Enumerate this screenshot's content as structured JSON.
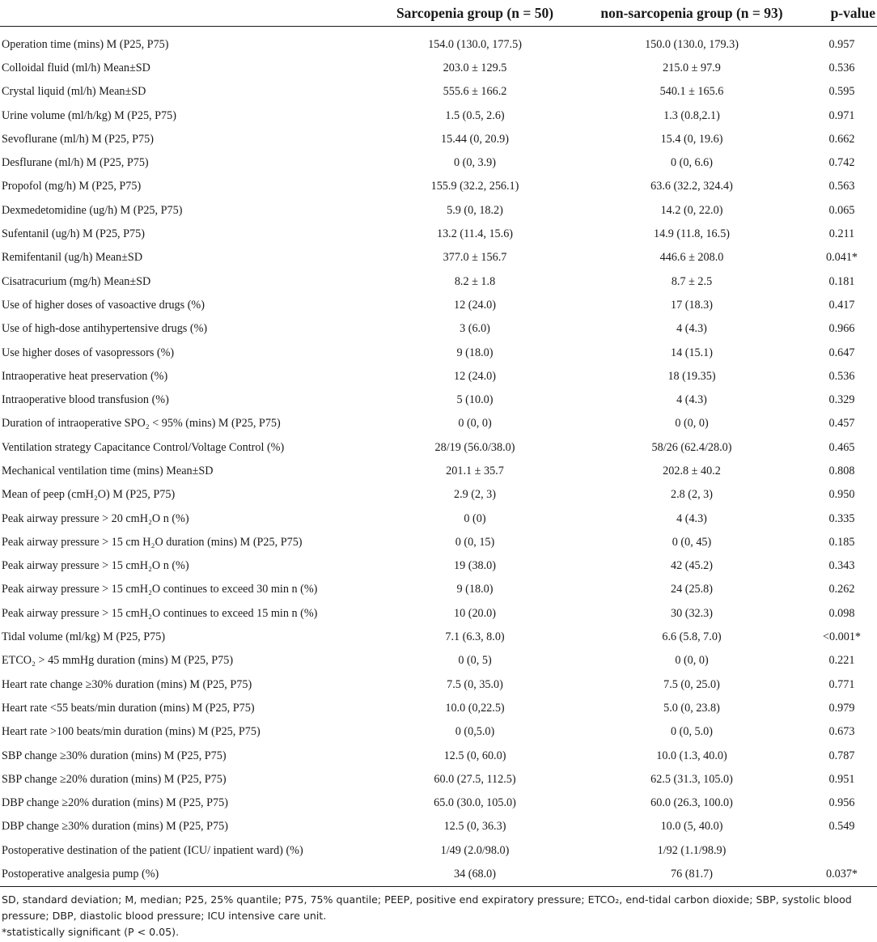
{
  "table": {
    "headers": {
      "label": "",
      "group1": "Sarcopenia group (n = 50)",
      "group2": "non-sarcopenia group (n = 93)",
      "pvalue": "p-value"
    },
    "rows": [
      {
        "label": "Operation time (mins) M (P25, P75)",
        "g1": "154.0 (130.0, 177.5)",
        "g2": "150.0 (130.0, 179.3)",
        "p": "0.957"
      },
      {
        "label": "Colloidal fluid (ml/h) Mean±SD",
        "g1": "203.0 ± 129.5",
        "g2": "215.0 ± 97.9",
        "p": "0.536"
      },
      {
        "label": "Crystal liquid (ml/h) Mean±SD",
        "g1": "555.6 ± 166.2",
        "g2": "540.1 ± 165.6",
        "p": "0.595"
      },
      {
        "label": "Urine volume (ml/h/kg) M (P25, P75)",
        "g1": "1.5 (0.5, 2.6)",
        "g2": "1.3 (0.8,2.1)",
        "p": "0.971"
      },
      {
        "label": "Sevoflurane (ml/h) M (P25, P75)",
        "g1": "15.44 (0, 20.9)",
        "g2": "15.4 (0, 19.6)",
        "p": "0.662"
      },
      {
        "label": "Desflurane (ml/h) M (P25, P75)",
        "g1": "0 (0, 3.9)",
        "g2": "0 (0, 6.6)",
        "p": "0.742"
      },
      {
        "label": "Propofol (mg/h) M (P25, P75)",
        "g1": "155.9 (32.2, 256.1)",
        "g2": "63.6 (32.2, 324.4)",
        "p": "0.563"
      },
      {
        "label": "Dexmedetomidine (ug/h) M (P25, P75)",
        "g1": "5.9 (0, 18.2)",
        "g2": "14.2 (0, 22.0)",
        "p": "0.065"
      },
      {
        "label": "Sufentanil (ug/h) M (P25, P75)",
        "g1": "13.2 (11.4, 15.6)",
        "g2": "14.9 (11.8, 16.5)",
        "p": "0.211"
      },
      {
        "label": "Remifentanil (ug/h) Mean±SD",
        "g1": "377.0 ± 156.7",
        "g2": "446.6 ± 208.0",
        "p": "0.041*"
      },
      {
        "label": "Cisatracurium (mg/h) Mean±SD",
        "g1": "8.2 ± 1.8",
        "g2": "8.7 ± 2.5",
        "p": "0.181"
      },
      {
        "label": "Use of higher doses of vasoactive drugs (%)",
        "g1": "12 (24.0)",
        "g2": "17 (18.3)",
        "p": "0.417"
      },
      {
        "label": "Use of high-dose antihypertensive drugs (%)",
        "g1": "3 (6.0)",
        "g2": "4 (4.3)",
        "p": "0.966"
      },
      {
        "label": "Use higher doses of vasopressors (%)",
        "g1": "9 (18.0)",
        "g2": "14 (15.1)",
        "p": "0.647"
      },
      {
        "label": "Intraoperative heat preservation (%)",
        "g1": "12 (24.0)",
        "g2": "18 (19.35)",
        "p": "0.536"
      },
      {
        "label": "Intraoperative blood transfusion (%)",
        "g1": "5 (10.0)",
        "g2": "4 (4.3)",
        "p": "0.329"
      },
      {
        "label": "Duration of intraoperative SPO₂ < 95% (mins) M (P25, P75)",
        "g1": "0 (0, 0)",
        "g2": "0 (0, 0)",
        "p": "0.457"
      },
      {
        "label": "Ventilation strategy Capacitance Control/Voltage Control (%)",
        "g1": "28/19 (56.0/38.0)",
        "g2": "58/26 (62.4/28.0)",
        "p": "0.465"
      },
      {
        "label": "Mechanical ventilation time (mins) Mean±SD",
        "g1": "201.1 ± 35.7",
        "g2": "202.8 ± 40.2",
        "p": "0.808"
      },
      {
        "label": "Mean of peep (cmH₂O) M (P25, P75)",
        "g1": "2.9 (2, 3)",
        "g2": "2.8 (2, 3)",
        "p": "0.950"
      },
      {
        "label": "Peak airway pressure > 20 cmH₂O n (%)",
        "g1": "0 (0)",
        "g2": "4 (4.3)",
        "p": "0.335"
      },
      {
        "label": "Peak airway pressure > 15 cm H₂O duration (mins) M (P25, P75)",
        "g1": "0 (0, 15)",
        "g2": "0 (0, 45)",
        "p": "0.185"
      },
      {
        "label": "Peak airway pressure > 15 cmH₂O n (%)",
        "g1": "19 (38.0)",
        "g2": "42 (45.2)",
        "p": "0.343"
      },
      {
        "label": "Peak airway pressure > 15 cmH₂O continues to exceed 30 min n (%)",
        "g1": "9 (18.0)",
        "g2": "24 (25.8)",
        "p": "0.262"
      },
      {
        "label": "Peak airway pressure > 15 cmH₂O continues to exceed 15 min n (%)",
        "g1": "10 (20.0)",
        "g2": "30 (32.3)",
        "p": "0.098"
      },
      {
        "label": "Tidal volume (ml/kg) M (P25, P75)",
        "g1": "7.1 (6.3, 8.0)",
        "g2": "6.6 (5.8, 7.0)",
        "p": "<0.001*"
      },
      {
        "label": "ETCO₂ > 45 mmHg duration (mins) M (P25, P75)",
        "g1": "0 (0, 5)",
        "g2": "0 (0, 0)",
        "p": "0.221"
      },
      {
        "label": "Heart rate change ≥30% duration (mins) M (P25, P75)",
        "g1": "7.5 (0, 35.0)",
        "g2": "7.5 (0, 25.0)",
        "p": "0.771"
      },
      {
        "label": "Heart rate <55 beats/min duration (mins) M (P25, P75)",
        "g1": "10.0 (0,22.5)",
        "g2": "5.0 (0, 23.8)",
        "p": "0.979"
      },
      {
        "label": "Heart rate >100 beats/min duration (mins) M (P25, P75)",
        "g1": "0 (0,5.0)",
        "g2": "0 (0, 5.0)",
        "p": "0.673"
      },
      {
        "label": "SBP change ≥30% duration (mins) M (P25, P75)",
        "g1": "12.5 (0, 60.0)",
        "g2": "10.0 (1.3, 40.0)",
        "p": "0.787"
      },
      {
        "label": "SBP change ≥20% duration (mins) M (P25, P75)",
        "g1": "60.0 (27.5, 112.5)",
        "g2": "62.5 (31.3, 105.0)",
        "p": "0.951"
      },
      {
        "label": "DBP change ≥20% duration (mins) M (P25, P75)",
        "g1": "65.0 (30.0, 105.0)",
        "g2": "60.0 (26.3, 100.0)",
        "p": "0.956"
      },
      {
        "label": "DBP change ≥30% duration (mins) M (P25, P75)",
        "g1": "12.5 (0, 36.3)",
        "g2": "10.0 (5, 40.0)",
        "p": "0.549"
      },
      {
        "label": "Postoperative destination of the patient (ICU/ inpatient ward) (%)",
        "g1": "1/49 (2.0/98.0)",
        "g2": "1/92 (1.1/98.9)",
        "p": ""
      },
      {
        "label": "Postoperative analgesia pump (%)",
        "g1": "34 (68.0)",
        "g2": "76 (81.7)",
        "p": "0.037*"
      }
    ]
  },
  "footnotes": {
    "abbreviations": "SD, standard deviation; M, median; P25, 25% quantile; P75, 75% quantile; PEEP, positive end expiratory pressure; ETCO₂, end-tidal carbon dioxide; SBP, systolic blood pressure; DBP, diastolic blood pressure; ICU intensive care unit.",
    "significance": "*statistically significant (P < 0.05)."
  }
}
